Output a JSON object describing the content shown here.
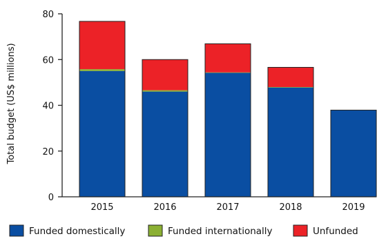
{
  "chart_data": {
    "type": "bar",
    "stacked": true,
    "categories": [
      "2015",
      "2016",
      "2017",
      "2018",
      "2019"
    ],
    "series": [
      {
        "name": "Funded domestically",
        "color": "#0a4ea2",
        "values": [
          55.0,
          46.0,
          54.2,
          47.8,
          37.9
        ]
      },
      {
        "name": "Funded internationally",
        "color": "#8bb033",
        "values": [
          0.8,
          0.6,
          0.2,
          0.2,
          0.0
        ]
      },
      {
        "name": "Unfunded",
        "color": "#ec2227",
        "values": [
          20.9,
          13.4,
          12.5,
          8.6,
          0.0
        ]
      }
    ],
    "xlabel": "",
    "ylabel": "Total budget (US$ millions)",
    "ylim": [
      0,
      80
    ],
    "yticks": [
      0,
      20,
      40,
      60,
      80
    ],
    "grid": false,
    "legend_position": "bottom"
  }
}
